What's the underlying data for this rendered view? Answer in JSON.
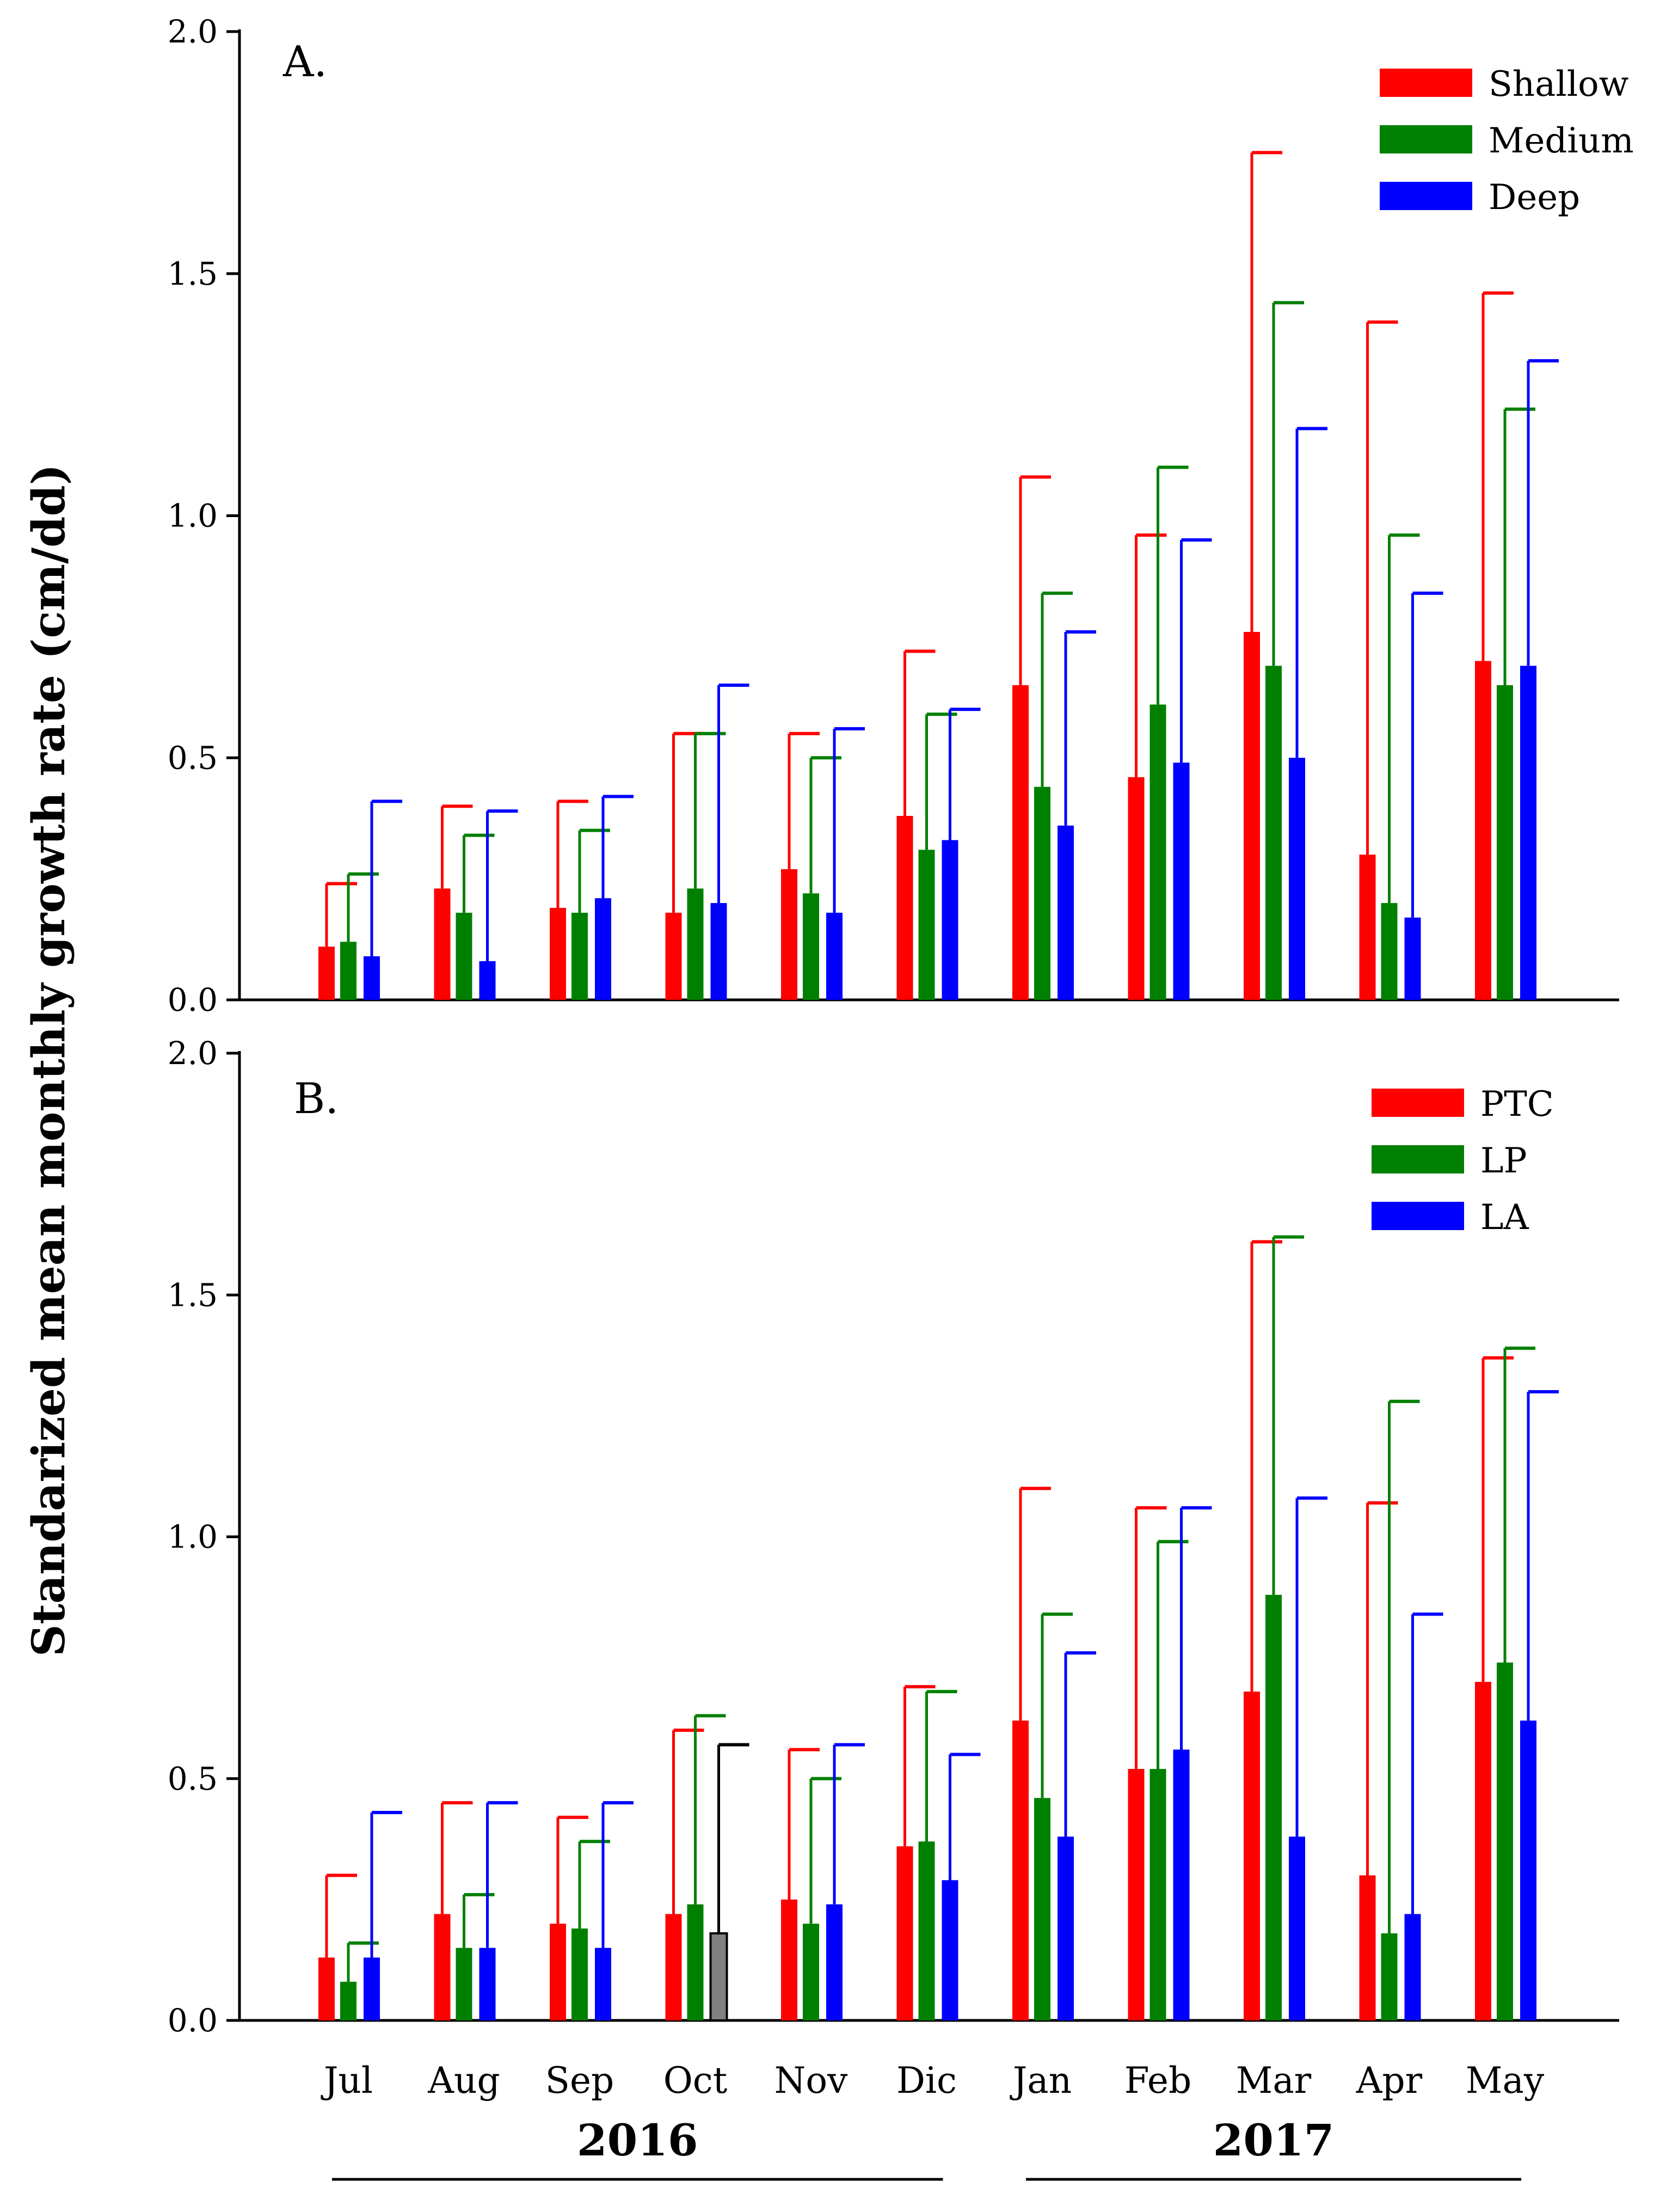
{
  "colors": {
    "red": "#ff0000",
    "green": "#008000",
    "blue": "#0000ff",
    "gray": "#808080",
    "axis": "#000000"
  },
  "ylabel": "Standarized mean monthly growth rate (cm/dd)",
  "months": [
    "Jul",
    "Aug",
    "Sep",
    "Oct",
    "Nov",
    "Dic",
    "Jan",
    "Feb",
    "Mar",
    "Apr",
    "May"
  ],
  "years": [
    {
      "label": "2016",
      "from": 0,
      "to": 5
    },
    {
      "label": "2017",
      "from": 6,
      "to": 10
    }
  ],
  "chart_data": [
    {
      "type": "bar",
      "title": "A.",
      "ylabel": "Standarized mean monthly growth rate (cm/dd)",
      "ylim": [
        0,
        2.0
      ],
      "yticks": [
        "0.0",
        "0.5",
        "1.0",
        "1.5",
        "2.0"
      ],
      "categories": [
        "Jul",
        "Aug",
        "Sep",
        "Oct",
        "Nov",
        "Dic",
        "Jan",
        "Feb",
        "Mar",
        "Apr",
        "May"
      ],
      "legend_position": "top-right",
      "series": [
        {
          "name": "Shallow",
          "color": "#ff0000",
          "values": [
            0.11,
            0.23,
            0.19,
            0.18,
            0.27,
            0.38,
            0.65,
            0.46,
            0.76,
            0.3,
            0.7
          ],
          "error_upper": [
            0.24,
            0.4,
            0.41,
            0.55,
            0.55,
            0.72,
            1.08,
            0.96,
            1.75,
            1.4,
            1.46
          ]
        },
        {
          "name": "Medium",
          "color": "#008000",
          "values": [
            0.12,
            0.18,
            0.18,
            0.23,
            0.22,
            0.31,
            0.44,
            0.61,
            0.69,
            0.2,
            0.65
          ],
          "error_upper": [
            0.26,
            0.34,
            0.35,
            0.55,
            0.5,
            0.59,
            0.84,
            1.1,
            1.44,
            0.96,
            1.22
          ]
        },
        {
          "name": "Deep",
          "color": "#0000ff",
          "values": [
            0.09,
            0.08,
            0.21,
            0.2,
            0.18,
            0.33,
            0.36,
            0.49,
            0.5,
            0.17,
            0.69
          ],
          "error_upper": [
            0.41,
            0.39,
            0.42,
            0.65,
            0.56,
            0.6,
            0.76,
            0.95,
            1.18,
            0.84,
            1.32
          ]
        }
      ]
    },
    {
      "type": "bar",
      "title": "B.",
      "ylabel": "Standarized mean monthly growth rate (cm/dd)",
      "ylim": [
        0,
        2.0
      ],
      "yticks": [
        "0.0",
        "0.5",
        "1.0",
        "1.5",
        "2.0"
      ],
      "xlabel": "",
      "categories": [
        "Jul",
        "Aug",
        "Sep",
        "Oct",
        "Nov",
        "Dic",
        "Jan",
        "Feb",
        "Mar",
        "Apr",
        "May"
      ],
      "legend_position": "top-right",
      "series": [
        {
          "name": "PTC",
          "color": "#ff0000",
          "values": [
            0.13,
            0.22,
            0.2,
            0.22,
            0.25,
            0.36,
            0.62,
            0.52,
            0.68,
            0.3,
            0.7
          ],
          "error_upper": [
            0.3,
            0.45,
            0.42,
            0.6,
            0.56,
            0.69,
            1.1,
            1.06,
            1.61,
            1.07,
            1.37
          ]
        },
        {
          "name": "LP",
          "color": "#008000",
          "values": [
            0.08,
            0.15,
            0.19,
            0.24,
            0.2,
            0.37,
            0.46,
            0.52,
            0.88,
            0.18,
            0.74
          ],
          "error_upper": [
            0.16,
            0.26,
            0.37,
            0.63,
            0.5,
            0.68,
            0.84,
            0.99,
            1.62,
            1.28,
            1.39
          ]
        },
        {
          "name": "LA",
          "color": "#0000ff",
          "values": [
            0.13,
            0.15,
            0.15,
            0.18,
            0.24,
            0.29,
            0.38,
            0.56,
            0.38,
            0.22,
            0.62
          ],
          "error_upper": [
            0.43,
            0.45,
            0.45,
            0.57,
            0.57,
            0.55,
            0.76,
            1.06,
            1.08,
            0.84,
            1.3
          ],
          "highlight_color": {
            "Oct": "#808080"
          }
        }
      ]
    }
  ]
}
